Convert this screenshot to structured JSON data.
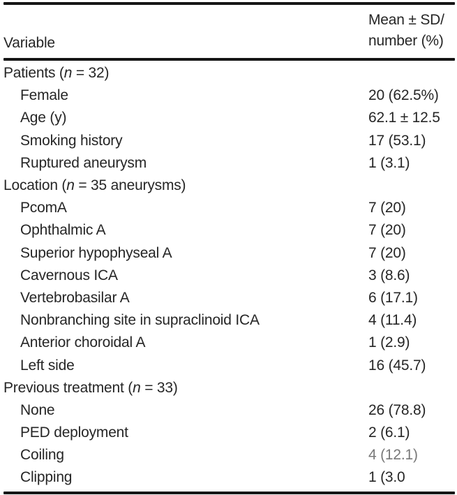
{
  "table": {
    "title_semantic": "patient-demographics-table",
    "header": {
      "variable": "Variable",
      "value_line1": "Mean ± SD/",
      "value_line2": "number (%)"
    },
    "rows": [
      {
        "label": "Patients (n = 32)",
        "value": "",
        "indent": false
      },
      {
        "label": "Female",
        "value": "20 (62.5%)",
        "indent": true
      },
      {
        "label": "Age (y)",
        "value": "62.1 ± 12.5",
        "indent": true
      },
      {
        "label": "Smoking history",
        "value": "17 (53.1)",
        "indent": true
      },
      {
        "label": "Ruptured aneurysm",
        "value": "1 (3.1)",
        "indent": true
      },
      {
        "label": "Location (n = 35 aneurysms)",
        "value": "",
        "indent": false
      },
      {
        "label": "PcomA",
        "value": "7 (20)",
        "indent": true
      },
      {
        "label": "Ophthalmic A",
        "value": "7 (20)",
        "indent": true
      },
      {
        "label": "Superior hypophyseal A",
        "value": "7 (20)",
        "indent": true
      },
      {
        "label": "Cavernous ICA",
        "value": "3 (8.6)",
        "indent": true
      },
      {
        "label": "Vertebrobasilar A",
        "value": "6 (17.1)",
        "indent": true
      },
      {
        "label": "Nonbranching site in supraclinoid ICA",
        "value": "4 (11.4)",
        "indent": true
      },
      {
        "label": "Anterior choroidal A",
        "value": "1 (2.9)",
        "indent": true
      },
      {
        "label": "Left side",
        "value": "16 (45.7)",
        "indent": true
      },
      {
        "label": "Previous treatment (n = 33)",
        "value": "",
        "indent": false
      },
      {
        "label": "None",
        "value": "26 (78.8)",
        "indent": true
      },
      {
        "label": "PED deployment",
        "value": "2 (6.1)",
        "indent": true
      },
      {
        "label": "Coiling",
        "value": "4 (12.1)",
        "indent": true,
        "value_muted": true
      },
      {
        "label": "Clipping",
        "value": "1 (3.0",
        "indent": true
      }
    ],
    "colors": {
      "text": "#262626",
      "rule": "#161616",
      "background": "#ffffff"
    }
  }
}
